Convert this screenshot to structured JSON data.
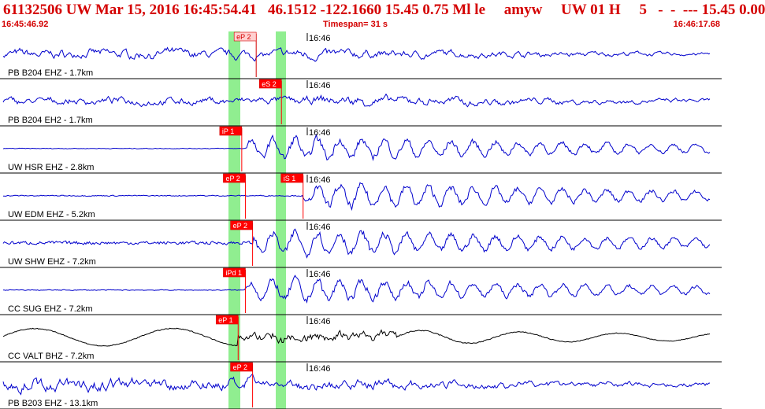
{
  "header": {
    "title": "61132506 UW Mar 15, 2016 16:45:54.41   46.1512 -122.1660 15.45 0.75 Ml le     amyw     UW 01 H     5   -  -  --- 15.45 0.00",
    "start_time": "16:45:46.92",
    "timespan": "Timespan=  31 s",
    "end_time": "16:46:17.68"
  },
  "colors": {
    "header_text": "#d40000",
    "trace_blue": "#0000cc",
    "trace_black": "#000000",
    "pick_red": "#ff0000",
    "window_green": "#90ee90",
    "divider": "#000000"
  },
  "traces": [
    {
      "label": "PB B204 EHZ - 1.7km",
      "time_label": "16:46",
      "color": "blue",
      "onset": 0.36,
      "picks": [
        {
          "text": "eP 2",
          "t": 0.355,
          "style": "light"
        }
      ],
      "amp_pre": 0.55,
      "amp_post": 0.7,
      "period": "mixed"
    },
    {
      "label": "PB B204 EH2 - 1.7km",
      "time_label": "16:46",
      "color": "blue",
      "onset": 0.4,
      "picks": [
        {
          "text": "eS 2",
          "t": 0.39,
          "style": "red"
        }
      ],
      "amp_pre": 0.45,
      "amp_post": 0.75,
      "period": "mixed"
    },
    {
      "label": "UW HSR EHZ - 2.8km",
      "time_label": "16:46",
      "color": "blue",
      "onset": 0.34,
      "picks": [
        {
          "text": "iP 1",
          "t": 0.335,
          "style": "red"
        }
      ],
      "amp_pre": 0.05,
      "amp_post": 0.85,
      "period": "fast"
    },
    {
      "label": "UW EDM EHZ - 5.2km",
      "time_label": "16:46",
      "color": "blue",
      "onset": 0.42,
      "picks": [
        {
          "text": "eP 2",
          "t": 0.34,
          "style": "red"
        },
        {
          "text": "iS 1",
          "t": 0.42,
          "style": "red"
        }
      ],
      "amp_pre": 0.08,
      "amp_post": 0.85,
      "period": "fast"
    },
    {
      "label": "UW SHW EHZ - 7.2km",
      "time_label": "16:46",
      "color": "blue",
      "onset": 0.35,
      "picks": [
        {
          "text": "eP 2",
          "t": 0.35,
          "style": "red"
        }
      ],
      "amp_pre": 0.25,
      "amp_post": 0.9,
      "period": "fast"
    },
    {
      "label": "CC SUG EHZ - 7.2km",
      "time_label": "16:46",
      "color": "blue",
      "onset": 0.34,
      "picks": [
        {
          "text": "iPd 1",
          "t": 0.34,
          "style": "red"
        }
      ],
      "amp_pre": 0.06,
      "amp_post": 0.85,
      "period": "fast"
    },
    {
      "label": "CC VALT BHZ - 7.2km",
      "time_label": "16:46",
      "color": "black",
      "onset": 0.33,
      "picks": [
        {
          "text": "eP 1",
          "t": 0.33,
          "style": "red"
        }
      ],
      "amp_pre": 0.55,
      "amp_post": 0.9,
      "period": "slow"
    },
    {
      "label": "PB B203 EHZ - 13.1km",
      "time_label": "16:46",
      "color": "blue",
      "onset": 0.35,
      "picks": [
        {
          "text": "eP 2",
          "t": 0.35,
          "style": "red"
        }
      ],
      "amp_pre": 0.8,
      "amp_post": 0.85,
      "period": "mixed"
    }
  ]
}
